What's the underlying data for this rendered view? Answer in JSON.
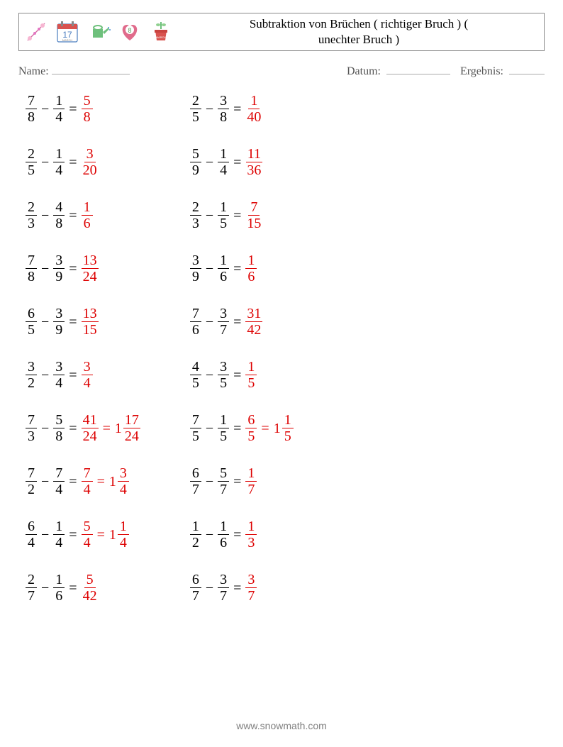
{
  "colors": {
    "page_bg": "#ffffff",
    "text": "#000000",
    "subtext": "#555555",
    "answer": "#dd0000",
    "footer": "#808080",
    "border": "#888888",
    "blank_line": "#aaaaaa"
  },
  "typography": {
    "body_family": "Times New Roman, serif",
    "title_fontsize": 17,
    "info_fontsize": 16,
    "problem_fontsize": 20,
    "footer_fontsize": 14,
    "footer_family": "Arial, sans-serif"
  },
  "header": {
    "title_line1": "Subtraktion von Brüchen ( richtiger Bruch ) (",
    "title_line2": "unechter Bruch )",
    "icons": [
      "flower-icon",
      "calendar-icon",
      "watering-can-icon",
      "heart-icon",
      "plant-pot-icon"
    ],
    "calendar_day": "17",
    "calendar_month": "MARCH",
    "heart_number": "8",
    "plant_label": "MARCH"
  },
  "info": {
    "name_label": "Name:",
    "date_label": "Datum:",
    "result_label": "Ergebnis:",
    "name_blank_width": 110,
    "date_blank_width": 90,
    "result_blank_width": 50
  },
  "problems": {
    "left": [
      {
        "a": {
          "n": 7,
          "d": 8
        },
        "b": {
          "n": 1,
          "d": 4
        },
        "ans": [
          {
            "n": 5,
            "d": 8
          }
        ]
      },
      {
        "a": {
          "n": 2,
          "d": 5
        },
        "b": {
          "n": 1,
          "d": 4
        },
        "ans": [
          {
            "n": 3,
            "d": 20
          }
        ]
      },
      {
        "a": {
          "n": 2,
          "d": 3
        },
        "b": {
          "n": 4,
          "d": 8
        },
        "ans": [
          {
            "n": 1,
            "d": 6
          }
        ]
      },
      {
        "a": {
          "n": 7,
          "d": 8
        },
        "b": {
          "n": 3,
          "d": 9
        },
        "ans": [
          {
            "n": 13,
            "d": 24
          }
        ]
      },
      {
        "a": {
          "n": 6,
          "d": 5
        },
        "b": {
          "n": 3,
          "d": 9
        },
        "ans": [
          {
            "n": 13,
            "d": 15
          }
        ]
      },
      {
        "a": {
          "n": 3,
          "d": 2
        },
        "b": {
          "n": 3,
          "d": 4
        },
        "ans": [
          {
            "n": 3,
            "d": 4
          }
        ]
      },
      {
        "a": {
          "n": 7,
          "d": 3
        },
        "b": {
          "n": 5,
          "d": 8
        },
        "ans": [
          {
            "n": 41,
            "d": 24
          },
          {
            "w": 1,
            "n": 17,
            "d": 24
          }
        ]
      },
      {
        "a": {
          "n": 7,
          "d": 2
        },
        "b": {
          "n": 7,
          "d": 4
        },
        "ans": [
          {
            "n": 7,
            "d": 4
          },
          {
            "w": 1,
            "n": 3,
            "d": 4
          }
        ]
      },
      {
        "a": {
          "n": 6,
          "d": 4
        },
        "b": {
          "n": 1,
          "d": 4
        },
        "ans": [
          {
            "n": 5,
            "d": 4
          },
          {
            "w": 1,
            "n": 1,
            "d": 4
          }
        ]
      },
      {
        "a": {
          "n": 2,
          "d": 7
        },
        "b": {
          "n": 1,
          "d": 6
        },
        "ans": [
          {
            "n": 5,
            "d": 42
          }
        ]
      }
    ],
    "right": [
      {
        "a": {
          "n": 2,
          "d": 5
        },
        "b": {
          "n": 3,
          "d": 8
        },
        "ans": [
          {
            "n": 1,
            "d": 40
          }
        ]
      },
      {
        "a": {
          "n": 5,
          "d": 9
        },
        "b": {
          "n": 1,
          "d": 4
        },
        "ans": [
          {
            "n": 11,
            "d": 36
          }
        ]
      },
      {
        "a": {
          "n": 2,
          "d": 3
        },
        "b": {
          "n": 1,
          "d": 5
        },
        "ans": [
          {
            "n": 7,
            "d": 15
          }
        ]
      },
      {
        "a": {
          "n": 3,
          "d": 9
        },
        "b": {
          "n": 1,
          "d": 6
        },
        "ans": [
          {
            "n": 1,
            "d": 6
          }
        ]
      },
      {
        "a": {
          "n": 7,
          "d": 6
        },
        "b": {
          "n": 3,
          "d": 7
        },
        "ans": [
          {
            "n": 31,
            "d": 42
          }
        ]
      },
      {
        "a": {
          "n": 4,
          "d": 5
        },
        "b": {
          "n": 3,
          "d": 5
        },
        "ans": [
          {
            "n": 1,
            "d": 5
          }
        ]
      },
      {
        "a": {
          "n": 7,
          "d": 5
        },
        "b": {
          "n": 1,
          "d": 5
        },
        "ans": [
          {
            "n": 6,
            "d": 5
          },
          {
            "w": 1,
            "n": 1,
            "d": 5
          }
        ]
      },
      {
        "a": {
          "n": 6,
          "d": 7
        },
        "b": {
          "n": 5,
          "d": 7
        },
        "ans": [
          {
            "n": 1,
            "d": 7
          }
        ]
      },
      {
        "a": {
          "n": 1,
          "d": 2
        },
        "b": {
          "n": 1,
          "d": 6
        },
        "ans": [
          {
            "n": 1,
            "d": 3
          }
        ]
      },
      {
        "a": {
          "n": 6,
          "d": 7
        },
        "b": {
          "n": 3,
          "d": 7
        },
        "ans": [
          {
            "n": 3,
            "d": 7
          }
        ]
      }
    ]
  },
  "footer": {
    "text": "www.snowmath.com"
  }
}
